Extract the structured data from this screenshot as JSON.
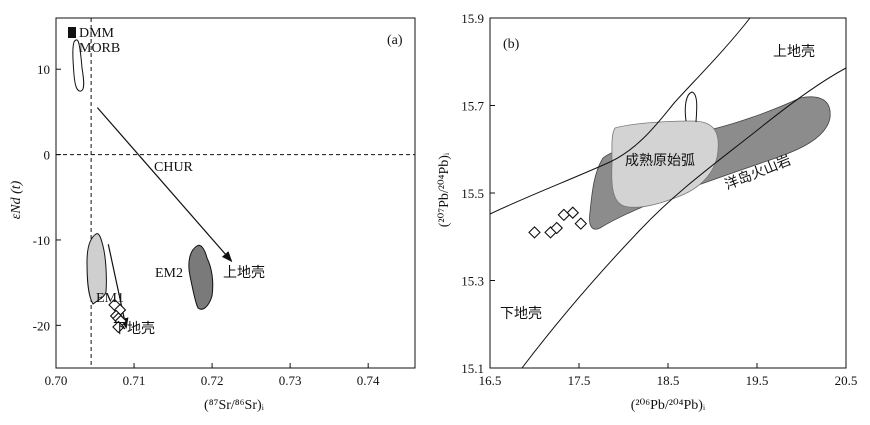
{
  "chart_data": [
    {
      "panel": "(a)",
      "type": "scatter",
      "panel_label": "(a)",
      "xlabel": "(⁸⁷Sr/⁸⁶Sr)ᵢ",
      "ylabel": "εNd (t)",
      "xlim": [
        0.7,
        0.746
      ],
      "ylim": [
        -25,
        16
      ],
      "x_ticks": [
        0.7,
        0.71,
        0.72,
        0.73,
        0.74
      ],
      "x_tick_labels": [
        "0.70",
        "0.71",
        "0.72",
        "0.73",
        "0.74"
      ],
      "y_ticks": [
        10,
        0,
        -10,
        -20
      ],
      "y_tick_labels": [
        "10",
        "0",
        "-10",
        "-20"
      ],
      "reference_lines": [
        {
          "axis": "y",
          "value": 0,
          "style": "dashed"
        },
        {
          "axis": "x",
          "value": 0.7045,
          "style": "dashed"
        }
      ],
      "labels": {
        "dmm": "DMM",
        "morb": "MORB",
        "chur": "CHUR",
        "em1": "EM1",
        "em2": "EM2",
        "upper_crust": "上地壳",
        "lower_crust": "下地壳"
      },
      "points": [
        {
          "x": 0.7075,
          "y": -17.6
        },
        {
          "x": 0.7082,
          "y": -18.2
        },
        {
          "x": 0.7077,
          "y": -18.9
        },
        {
          "x": 0.708,
          "y": -19.2
        },
        {
          "x": 0.7083,
          "y": -19.5
        },
        {
          "x": 0.708,
          "y": -20.2
        }
      ],
      "fields": [
        {
          "name": "MORB",
          "fill": "#ffffff"
        },
        {
          "name": "EM1",
          "fill": "#cfcfcf"
        },
        {
          "name": "EM2",
          "fill": "#7a7a7a"
        }
      ],
      "arrows": [
        {
          "from": [
            0.7053,
            5.5
          ],
          "to": [
            0.7225,
            -12.5
          ],
          "label": "上地壳"
        },
        {
          "from": [
            0.7067,
            -10.5
          ],
          "to": [
            0.709,
            -20.3
          ],
          "label": "下地壳"
        }
      ]
    },
    {
      "panel": "(b)",
      "type": "scatter",
      "panel_label": "(b)",
      "xlabel": "(²⁰⁶Pb/²⁰⁴Pb)ᵢ",
      "ylabel": "(²⁰⁷Pb/²⁰⁴Pb)ᵢ",
      "xlim": [
        16.5,
        20.5
      ],
      "ylim": [
        15.1,
        15.9
      ],
      "x_ticks": [
        16.5,
        17.5,
        18.5,
        19.5,
        20.5
      ],
      "x_tick_labels": [
        "16.5",
        "17.5",
        "18.5",
        "19.5",
        "20.5"
      ],
      "y_ticks": [
        15.1,
        15.3,
        15.5,
        15.7,
        15.9
      ],
      "y_tick_labels": [
        "15.1",
        "15.3",
        "15.5",
        "15.7",
        "15.9"
      ],
      "labels": {
        "upper_crust": "上地壳",
        "lower_crust": "下地壳",
        "mature_arc": "成熟原始弧",
        "oib": "洋岛火山岩"
      },
      "points": [
        {
          "x": 17.0,
          "y": 15.41
        },
        {
          "x": 17.18,
          "y": 15.41
        },
        {
          "x": 17.25,
          "y": 15.42
        },
        {
          "x": 17.33,
          "y": 15.45
        },
        {
          "x": 17.43,
          "y": 15.455
        },
        {
          "x": 17.52,
          "y": 15.43
        }
      ],
      "fields": [
        {
          "name": "成熟原始弧",
          "fill": "#d3d3d3"
        },
        {
          "name": "洋岛火山岩",
          "fill": "#8c8c8c"
        }
      ]
    }
  ]
}
